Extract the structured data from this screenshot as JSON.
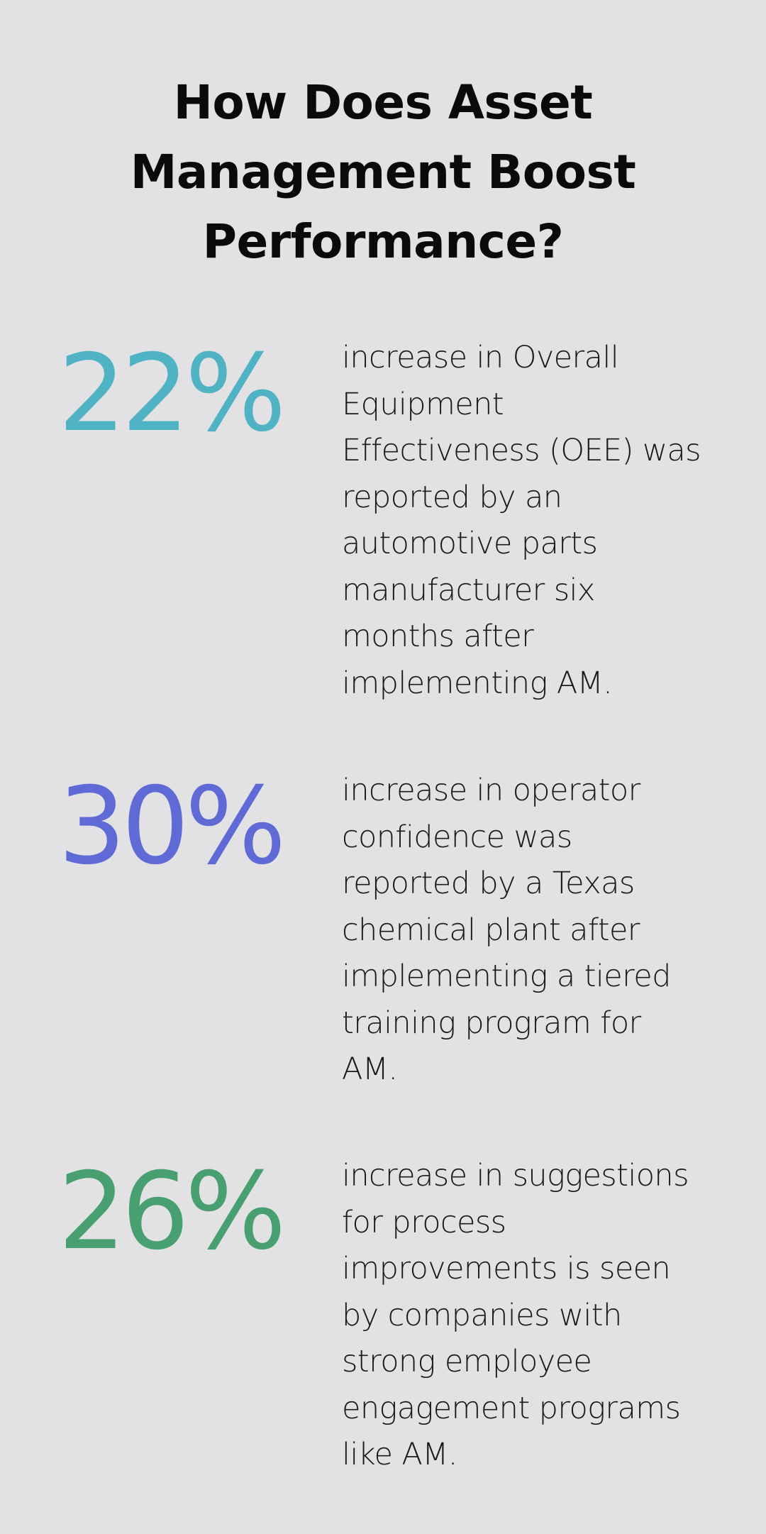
{
  "title_lines": [
    "How Does Asset",
    "Management Boost",
    "Performance?"
  ],
  "stats": [
    {
      "value": "22%",
      "color": "#4fb3c4",
      "lines": [
        "increase in Overall",
        "Equipment",
        "Effectiveness (OEE) was",
        "reported by an",
        "automotive parts",
        "manufacturer six",
        "months after",
        "implementing AM."
      ]
    },
    {
      "value": "30%",
      "color": "#5f6ad6",
      "lines": [
        "increase in operator",
        "confidence was",
        "reported by a Texas",
        "chemical plant after",
        "implementing a tiered",
        "training program for",
        "AM."
      ]
    },
    {
      "value": "26%",
      "color": "#48a070",
      "lines": [
        "increase in suggestions",
        "for process",
        "improvements is seen",
        "by companies with",
        "strong employee",
        "engagement programs",
        "like AM."
      ]
    }
  ]
}
